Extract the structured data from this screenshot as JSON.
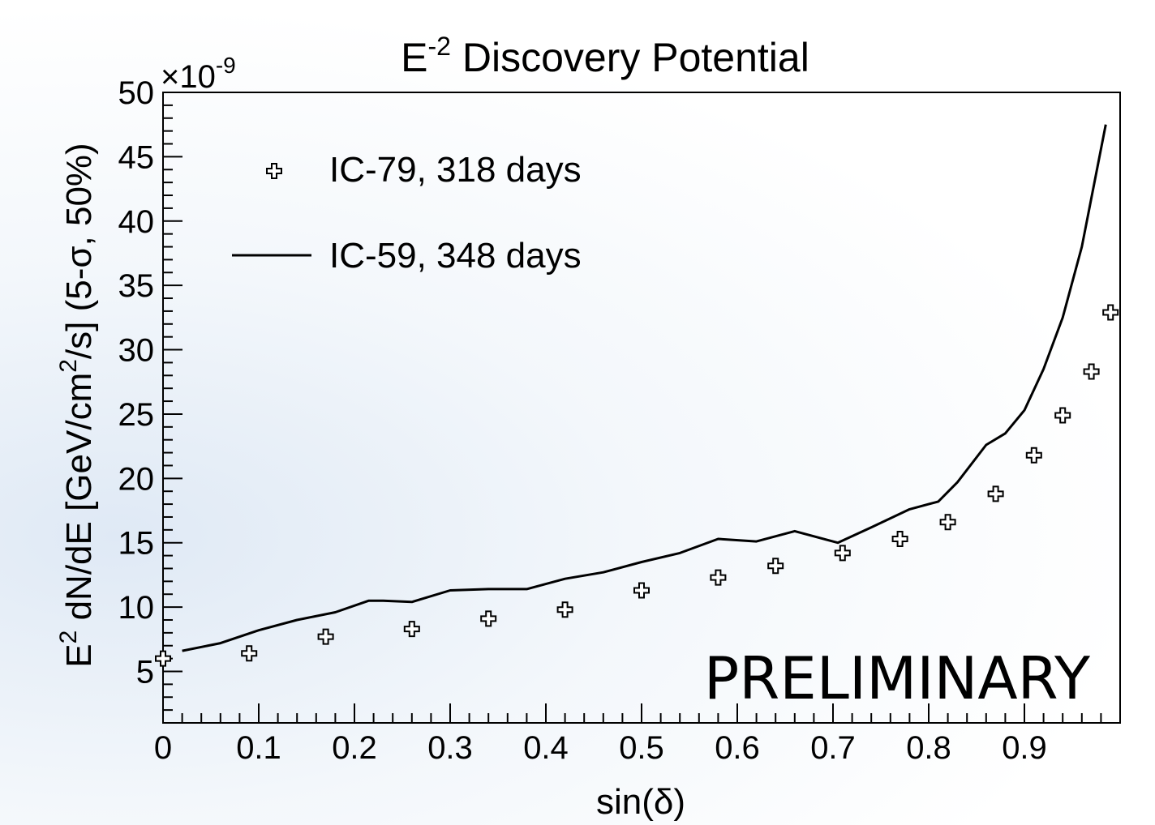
{
  "chart_data": {
    "type": "scatter",
    "title": {
      "base": "E",
      "sup": "-2",
      "rest": " Discovery Potential"
    },
    "xlabel": "sin(δ)",
    "ylabel": {
      "p1": "E",
      "sup1": "2",
      "p2": " dN/dE [GeV/cm",
      "sup2": "2",
      "p3": "/s] (5-σ, 50%)"
    },
    "yexponent": {
      "prefix": "×10",
      "sup": "-9"
    },
    "xlim": [
      0,
      1.0
    ],
    "ylim": [
      1,
      50
    ],
    "xticks": [
      "0",
      "0.1",
      "0.2",
      "0.3",
      "0.4",
      "0.5",
      "0.6",
      "0.7",
      "0.8",
      "0.9"
    ],
    "yticks": [
      "5",
      "10",
      "15",
      "20",
      "25",
      "30",
      "35",
      "40",
      "45",
      "50"
    ],
    "legend_position": "top-left",
    "annotation": "PRELIMINARY",
    "series": [
      {
        "name": "IC-79, 318 days",
        "style": "marker-open-cross",
        "x": [
          0.0,
          0.09,
          0.17,
          0.26,
          0.34,
          0.42,
          0.5,
          0.58,
          0.64,
          0.71,
          0.77,
          0.82,
          0.87,
          0.91,
          0.94,
          0.97,
          0.99
        ],
        "y": [
          6.0,
          6.4,
          7.7,
          8.3,
          9.1,
          9.8,
          11.3,
          12.3,
          13.2,
          14.2,
          15.3,
          16.6,
          18.8,
          21.8,
          24.9,
          28.3,
          32.9
        ]
      },
      {
        "name": "IC-59, 348 days",
        "style": "line",
        "x": [
          0.02,
          0.06,
          0.1,
          0.14,
          0.18,
          0.215,
          0.23,
          0.26,
          0.3,
          0.34,
          0.38,
          0.42,
          0.46,
          0.5,
          0.54,
          0.58,
          0.62,
          0.66,
          0.705,
          0.74,
          0.78,
          0.81,
          0.83,
          0.86,
          0.88,
          0.9,
          0.92,
          0.94,
          0.96,
          0.985
        ],
        "y": [
          6.6,
          7.2,
          8.2,
          9.0,
          9.6,
          10.5,
          10.5,
          10.4,
          11.3,
          11.4,
          11.4,
          12.2,
          12.7,
          13.5,
          14.2,
          15.3,
          15.1,
          15.9,
          15.0,
          16.2,
          17.6,
          18.2,
          19.7,
          22.6,
          23.5,
          25.3,
          28.5,
          32.5,
          38.0,
          47.5
        ]
      }
    ]
  }
}
